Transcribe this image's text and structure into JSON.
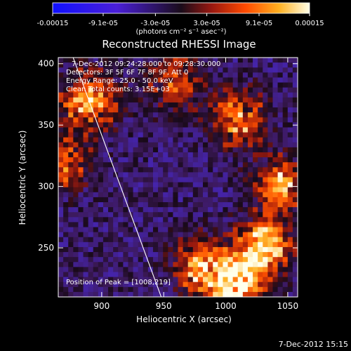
{
  "chart_data": {
    "type": "heatmap",
    "title": "Reconstructed RHESSI Image",
    "xlabel": "Heliocentric X (arcsec)",
    "ylabel": "Heliocentric Y (arcsec)",
    "xlim": [
      865,
      1058
    ],
    "ylim": [
      210,
      405
    ],
    "x_ticks": [
      900,
      950,
      1000,
      1050
    ],
    "y_ticks": [
      250,
      300,
      350,
      400
    ],
    "colorbar": {
      "range": [
        -0.00015,
        0.00015
      ],
      "tick_values": [
        -0.00015,
        -9.1e-05,
        -3e-05,
        3e-05,
        9.1e-05,
        0.00015
      ],
      "tick_labels": [
        "-0.00015",
        "-9.1e-05",
        "-3.0e-05",
        "3.0e-05",
        "9.1e-05",
        "0.00015"
      ],
      "units": "(photons cm⁻² s⁻¹ asec⁻²)"
    },
    "annotations": {
      "time_range": "7-Dec-2012 09:24:28.000 to 09:28:30.000",
      "detectors": "Detectors: 3F 5F 6F 7F 8F 9F, Att 0",
      "energy_range": "Energy Range: 25.0 - 50.0 keV",
      "clean_counts": "Clean   Total counts: 3.15E+03",
      "peak_position": "Position of Peak = [1008,219]"
    },
    "hot_regions": [
      {
        "x": 890,
        "y": 370,
        "level": 0.9
      },
      {
        "x": 870,
        "y": 320,
        "level": 0.6
      },
      {
        "x": 960,
        "y": 385,
        "level": 0.55
      },
      {
        "x": 1010,
        "y": 355,
        "level": 0.75
      },
      {
        "x": 1045,
        "y": 300,
        "level": 0.8
      },
      {
        "x": 1030,
        "y": 250,
        "level": 1.0
      },
      {
        "x": 1008,
        "y": 219,
        "level": 1.0
      },
      {
        "x": 980,
        "y": 235,
        "level": 0.8
      }
    ],
    "limb_line": [
      [
        877,
        405
      ],
      [
        948,
        210
      ]
    ]
  },
  "footer": {
    "timestamp": "7-Dec-2012 15:15"
  }
}
